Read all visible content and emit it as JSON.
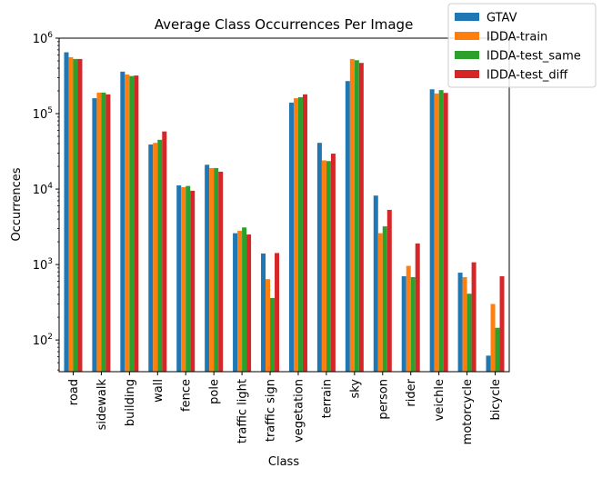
{
  "chart_data": {
    "type": "bar",
    "title": "Average Class Occurrences Per Image",
    "xlabel": "Class",
    "ylabel": "Occurrences",
    "yscale": "log",
    "ylim": [
      38,
      1000000
    ],
    "yticks": [
      {
        "value": 100,
        "base": "10",
        "exp": "2"
      },
      {
        "value": 1000,
        "base": "10",
        "exp": "3"
      },
      {
        "value": 10000,
        "base": "10",
        "exp": "4"
      },
      {
        "value": 100000,
        "base": "10",
        "exp": "5"
      },
      {
        "value": 1000000,
        "base": "10",
        "exp": "6"
      }
    ],
    "grid": false,
    "legend_position": "top-right",
    "categories": [
      "road",
      "sidewalk",
      "building",
      "wall",
      "fence",
      "pole",
      "traffic light",
      "traffic sign",
      "vegetation",
      "terrain",
      "sky",
      "person",
      "rider",
      "veichle",
      "motorcycle",
      "bicycle"
    ],
    "series": [
      {
        "name": "GTAV",
        "color": "#1f77b4",
        "values": [
          650000,
          160000,
          360000,
          39000,
          11200,
          21000,
          2600,
          1400,
          140000,
          41000,
          270000,
          8200,
          700,
          210000,
          780,
          62
        ]
      },
      {
        "name": "IDDA-train",
        "color": "#ff7f0e",
        "values": [
          560000,
          190000,
          330000,
          41000,
          10600,
          19000,
          2800,
          640,
          160000,
          24000,
          530000,
          2600,
          960,
          185000,
          680,
          300
        ]
      },
      {
        "name": "IDDA-test_same",
        "color": "#2ca02c",
        "values": [
          530000,
          190000,
          315000,
          45000,
          11000,
          19000,
          3100,
          360,
          165000,
          23500,
          510000,
          3200,
          680,
          205000,
          410,
          145
        ]
      },
      {
        "name": "IDDA-test_diff",
        "color": "#d62728",
        "values": [
          530000,
          180000,
          320000,
          58000,
          9500,
          17000,
          2500,
          1420,
          180000,
          29500,
          470000,
          5300,
          1900,
          188000,
          1070,
          700
        ]
      }
    ]
  }
}
